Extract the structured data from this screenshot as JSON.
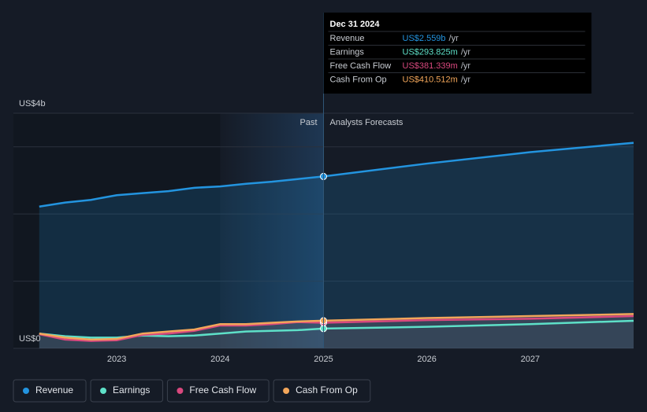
{
  "chart_data": {
    "type": "line",
    "x": [
      2022.25,
      2022.5,
      2022.75,
      2023,
      2023.25,
      2023.5,
      2023.75,
      2024,
      2024.25,
      2024.5,
      2024.75,
      2025,
      2026,
      2027,
      2028
    ],
    "series": [
      {
        "name": "Revenue",
        "color": "#2394df",
        "values": [
          2.11,
          2.17,
          2.21,
          2.28,
          2.31,
          2.34,
          2.39,
          2.41,
          2.45,
          2.48,
          2.52,
          2.559,
          2.75,
          2.92,
          3.06
        ]
      },
      {
        "name": "Earnings",
        "color": "#5ee0c8",
        "values": [
          0.22,
          0.18,
          0.16,
          0.16,
          0.19,
          0.18,
          0.19,
          0.22,
          0.25,
          0.26,
          0.27,
          0.294,
          0.32,
          0.36,
          0.41
        ]
      },
      {
        "name": "Free Cash Flow",
        "color": "#d9487e",
        "values": [
          0.21,
          0.13,
          0.11,
          0.12,
          0.2,
          0.22,
          0.26,
          0.34,
          0.34,
          0.36,
          0.39,
          0.381,
          0.42,
          0.44,
          0.48
        ]
      },
      {
        "name": "Cash From Op",
        "color": "#f2a65a",
        "values": [
          0.22,
          0.16,
          0.13,
          0.14,
          0.22,
          0.25,
          0.28,
          0.36,
          0.36,
          0.38,
          0.4,
          0.411,
          0.45,
          0.48,
          0.51
        ]
      }
    ],
    "xlim": [
      2022,
      2028
    ],
    "xticks": [
      2023,
      2024,
      2025,
      2026,
      2027
    ],
    "ylim": [
      0,
      3.5
    ],
    "yticks": [
      {
        "value": 0,
        "label": "US$0"
      },
      {
        "value": 1,
        "label": null
      },
      {
        "value": 2,
        "label": null
      },
      {
        "value": 3,
        "label": null
      },
      {
        "value": 3.5,
        "label": "US$4b"
      }
    ],
    "grid": true,
    "past_highlight": [
      2024,
      2025
    ],
    "past_label": "Past",
    "forecast_label": "Analysts Forecasts",
    "tooltip": {
      "x": 2025,
      "title": "Dec 31 2024",
      "rows": [
        {
          "label": "Revenue",
          "value": "US$2.559b",
          "unit": "/yr"
        },
        {
          "label": "Earnings",
          "value": "US$293.825m",
          "unit": "/yr"
        },
        {
          "label": "Free Cash Flow",
          "value": "US$381.339m",
          "unit": "/yr"
        },
        {
          "label": "Cash From Op",
          "value": "US$410.512m",
          "unit": "/yr"
        }
      ]
    }
  }
}
